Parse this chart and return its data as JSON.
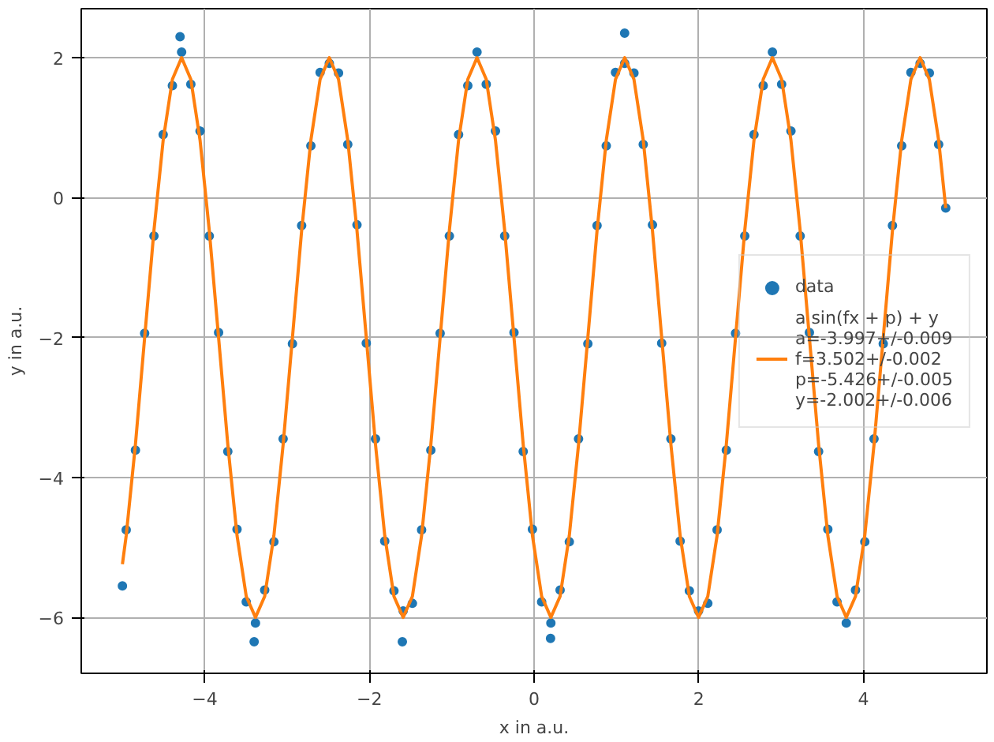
{
  "chart_data": {
    "type": "scatter",
    "xlabel": "x in a.u.",
    "ylabel": "y in a.u.",
    "xlim": [
      -5.5,
      5.5
    ],
    "ylim": [
      -6.8,
      2.7
    ],
    "xticks": [
      {
        "value": -4,
        "label": "−4"
      },
      {
        "value": -2,
        "label": "−2"
      },
      0,
      2,
      4
    ],
    "yticks": [
      {
        "value": -6,
        "label": "−6"
      },
      {
        "value": -4,
        "label": "−4"
      },
      {
        "value": -2,
        "label": "−2"
      },
      0,
      2
    ],
    "grid": true,
    "legend": "right",
    "marker": "circle",
    "series": [
      {
        "name": "data",
        "color": "#1f77b4",
        "x": [
          -5.0,
          -4.954,
          -4.842,
          -4.73,
          -4.617,
          -4.505,
          -4.393,
          -4.281,
          -4.169,
          -4.057,
          -3.945,
          -3.832,
          -3.72,
          -3.608,
          -3.496,
          -3.384,
          -3.272,
          -3.16,
          -3.048,
          -2.935,
          -2.823,
          -2.711,
          -2.599,
          -2.487,
          -2.375,
          -2.263,
          -2.151,
          -2.038,
          -1.926,
          -1.814,
          -1.702,
          -1.59,
          -1.478,
          -1.366,
          -1.254,
          -1.141,
          -1.029,
          -0.917,
          -0.805,
          -0.693,
          -0.581,
          -0.469,
          -0.357,
          -0.244,
          -0.132,
          -0.02,
          0.092,
          0.204,
          0.316,
          0.428,
          0.54,
          0.653,
          0.765,
          0.877,
          0.989,
          1.101,
          1.213,
          1.326,
          1.438,
          1.55,
          1.662,
          1.774,
          1.886,
          1.998,
          2.11,
          2.223,
          2.335,
          2.447,
          2.559,
          2.671,
          2.783,
          2.895,
          3.007,
          3.12,
          3.232,
          3.344,
          3.456,
          3.568,
          3.68,
          3.792,
          3.904,
          4.017,
          4.129,
          4.241,
          4.353,
          4.465,
          4.577,
          4.689,
          4.801,
          4.914,
          5.0,
          -4.3,
          -3.4,
          -1.6,
          1.1,
          0.2
        ],
        "values": [
          -5.55,
          -4.75,
          -3.61,
          -1.94,
          -0.55,
          0.9,
          1.6,
          2.08,
          1.62,
          0.95,
          -0.55,
          -1.93,
          -3.63,
          -4.74,
          -5.78,
          -6.08,
          -5.61,
          -4.92,
          -3.45,
          -2.09,
          -0.4,
          0.74,
          1.79,
          1.92,
          1.78,
          0.76,
          -0.39,
          -2.08,
          -3.45,
          -4.91,
          -5.62,
          -5.91,
          -5.8,
          -4.75,
          -3.61,
          -1.94,
          -0.55,
          0.9,
          1.6,
          2.08,
          1.62,
          0.95,
          -0.55,
          -1.93,
          -3.63,
          -4.74,
          -5.78,
          -6.08,
          -5.61,
          -4.92,
          -3.45,
          -2.09,
          -0.4,
          0.74,
          1.79,
          1.92,
          1.78,
          0.76,
          -0.39,
          -2.08,
          -3.45,
          -4.91,
          -5.62,
          -5.91,
          -5.8,
          -4.75,
          -3.61,
          -1.94,
          -0.55,
          0.9,
          1.6,
          2.08,
          1.62,
          0.95,
          -0.55,
          -1.93,
          -3.63,
          -4.74,
          -5.78,
          -6.08,
          -5.61,
          -4.92,
          -3.45,
          -2.09,
          -0.4,
          0.74,
          1.79,
          1.92,
          1.78,
          0.76,
          -0.15,
          2.3,
          -6.35,
          -6.35,
          2.35,
          -6.3
        ]
      },
      {
        "name": "a sin(fx + p) + y\na=-3.997+/-0.009\nf=3.502+/-0.002\np=-5.426+/-0.005\ny=-2.002+/-0.006",
        "type": "line",
        "marker": "none",
        "color": "#ff7f0e",
        "x": [
          -5.0,
          -4.954,
          -4.842,
          -4.73,
          -4.617,
          -4.505,
          -4.393,
          -4.281,
          -4.169,
          -4.057,
          -3.945,
          -3.832,
          -3.72,
          -3.608,
          -3.496,
          -3.384,
          -3.272,
          -3.16,
          -3.048,
          -2.935,
          -2.823,
          -2.711,
          -2.599,
          -2.487,
          -2.375,
          -2.263,
          -2.151,
          -2.038,
          -1.926,
          -1.814,
          -1.702,
          -1.59,
          -1.478,
          -1.366,
          -1.254,
          -1.141,
          -1.029,
          -0.917,
          -0.805,
          -0.693,
          -0.581,
          -0.469,
          -0.357,
          -0.244,
          -0.132,
          -0.02,
          0.092,
          0.204,
          0.316,
          0.428,
          0.54,
          0.653,
          0.765,
          0.877,
          0.989,
          1.101,
          1.213,
          1.326,
          1.438,
          1.55,
          1.662,
          1.774,
          1.886,
          1.998,
          2.11,
          2.223,
          2.335,
          2.447,
          2.559,
          2.671,
          2.783,
          2.895,
          3.007,
          3.12,
          3.232,
          3.344,
          3.456,
          3.568,
          3.68,
          3.792,
          3.904,
          4.017,
          4.129,
          4.241,
          4.353,
          4.465,
          4.577,
          4.689,
          4.801,
          4.914,
          5.0
        ],
        "values": [
          -5.24,
          -4.83,
          -3.53,
          -2.0,
          -0.47,
          0.82,
          1.69,
          2.0,
          1.69,
          0.82,
          -0.47,
          -2.0,
          -3.53,
          -4.83,
          -5.7,
          -6.0,
          -5.7,
          -4.83,
          -3.53,
          -2.0,
          -0.47,
          0.82,
          1.69,
          2.0,
          1.69,
          0.82,
          -0.47,
          -2.0,
          -3.53,
          -4.83,
          -5.7,
          -6.0,
          -5.7,
          -4.83,
          -3.53,
          -2.0,
          -0.47,
          0.82,
          1.69,
          2.0,
          1.69,
          0.82,
          -0.47,
          -2.0,
          -3.53,
          -4.83,
          -5.7,
          -6.0,
          -5.7,
          -4.83,
          -3.53,
          -2.0,
          -0.47,
          0.82,
          1.69,
          2.0,
          1.69,
          0.82,
          -0.47,
          -2.0,
          -3.53,
          -4.83,
          -5.7,
          -6.0,
          -5.7,
          -4.83,
          -3.53,
          -2.0,
          -0.47,
          0.82,
          1.69,
          2.0,
          1.69,
          0.82,
          -0.47,
          -2.0,
          -3.53,
          -4.83,
          -5.7,
          -6.0,
          -5.7,
          -4.83,
          -3.53,
          -2.0,
          -0.47,
          0.82,
          1.69,
          2.0,
          1.69,
          0.82,
          -0.15
        ]
      }
    ]
  }
}
